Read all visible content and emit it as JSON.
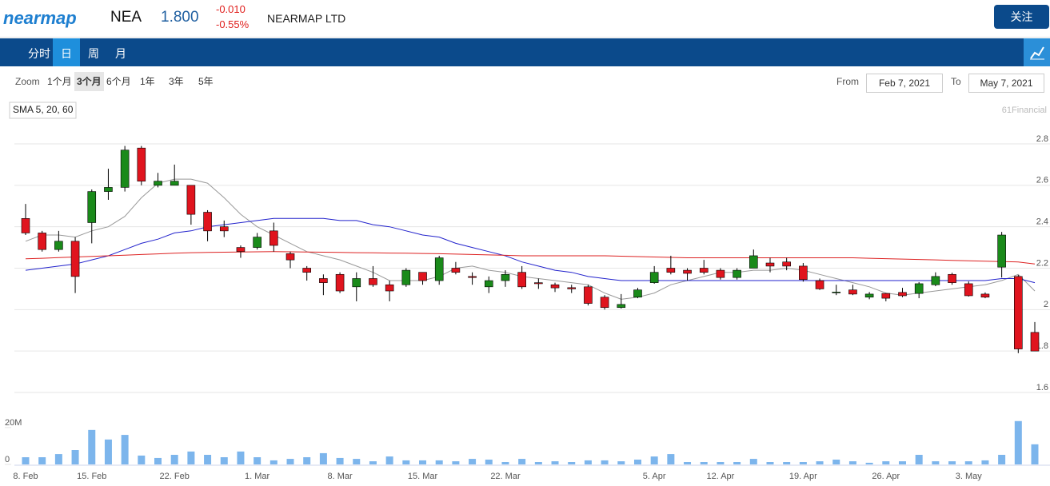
{
  "header": {
    "logo": "nearmap",
    "symbol": "NEA",
    "price": "1.800",
    "change": "-0.010",
    "change_pct": "-0.55%",
    "company": "NEARMAP LTD",
    "follow": "关注"
  },
  "nav": {
    "tabs": [
      "分时",
      "日",
      "周",
      "月"
    ],
    "active": 1
  },
  "toolbar": {
    "zoom_label": "Zoom",
    "zoom": [
      "1个月",
      "3个月",
      "6个月",
      "1年",
      "3年",
      "5年"
    ],
    "zoom_active": 1,
    "from_label": "From",
    "from": "Feb 7, 2021",
    "to_label": "To",
    "to": "May 7, 2021"
  },
  "chart_data": {
    "type": "candlestick",
    "indicator_label": "SMA 5, 20, 60",
    "credit": "61Financial",
    "categories": [
      "8. Feb",
      null,
      null,
      null,
      "15. Feb",
      null,
      null,
      null,
      null,
      "22. Feb",
      null,
      null,
      null,
      null,
      "1. Mar",
      null,
      null,
      null,
      null,
      "8. Mar",
      null,
      null,
      null,
      null,
      "15. Mar",
      null,
      null,
      null,
      null,
      "22. Mar",
      null,
      null,
      null,
      null,
      null,
      null,
      null,
      null,
      "5. Apr",
      null,
      null,
      null,
      "12. Apr",
      null,
      null,
      null,
      null,
      "19. Apr",
      null,
      null,
      null,
      null,
      "26. Apr",
      null,
      null,
      null,
      null,
      "3. May",
      null,
      null,
      null,
      null
    ],
    "open": [
      2.44,
      2.37,
      2.29,
      2.33,
      2.42,
      2.57,
      2.59,
      2.78,
      2.6,
      2.6,
      2.6,
      2.47,
      2.4,
      2.3,
      2.3,
      2.38,
      2.27,
      2.2,
      2.15,
      2.17,
      2.11,
      2.15,
      2.12,
      2.12,
      2.18,
      2.14,
      2.2,
      2.16,
      2.11,
      2.14,
      2.18,
      2.13,
      2.12,
      2.106,
      2.11,
      2.06,
      2.01,
      2.06,
      2.13,
      2.2,
      2.19,
      2.2,
      2.19,
      2.155,
      2.2,
      2.225,
      2.23,
      2.21,
      2.14,
      2.085,
      2.095,
      2.06,
      2.078,
      2.083,
      2.078,
      2.12,
      2.17,
      2.125,
      2.075,
      2.205,
      2.16,
      1.89
    ],
    "high": [
      2.51,
      2.38,
      2.38,
      2.35,
      2.58,
      2.68,
      2.79,
      2.79,
      2.66,
      2.7,
      2.6,
      2.48,
      2.43,
      2.31,
      2.37,
      2.42,
      2.28,
      2.21,
      2.17,
      2.18,
      2.18,
      2.21,
      2.14,
      2.2,
      2.18,
      2.26,
      2.23,
      2.18,
      2.16,
      2.19,
      2.21,
      2.15,
      2.13,
      2.12,
      2.12,
      2.07,
      2.075,
      2.105,
      2.21,
      2.26,
      2.2,
      2.24,
      2.2,
      2.2,
      2.29,
      2.25,
      2.25,
      2.225,
      2.15,
      2.12,
      2.12,
      2.085,
      2.08,
      2.105,
      2.133,
      2.18,
      2.178,
      2.136,
      2.083,
      2.375,
      2.167,
      1.94
    ],
    "low": [
      2.36,
      2.28,
      2.28,
      2.08,
      2.32,
      2.53,
      2.57,
      2.6,
      2.59,
      2.6,
      2.41,
      2.33,
      2.35,
      2.25,
      2.29,
      2.28,
      2.2,
      2.14,
      2.07,
      2.08,
      2.04,
      2.11,
      2.04,
      2.11,
      2.12,
      2.12,
      2.17,
      2.12,
      2.08,
      2.11,
      2.1,
      2.1,
      2.085,
      2.08,
      2.02,
      2.0,
      2.005,
      2.055,
      2.125,
      2.17,
      2.14,
      2.17,
      2.145,
      2.145,
      2.2,
      2.18,
      2.19,
      2.135,
      2.095,
      2.07,
      2.07,
      2.05,
      2.04,
      2.06,
      2.055,
      2.113,
      2.12,
      2.063,
      2.055,
      2.155,
      1.79,
      1.8
    ],
    "close": [
      2.37,
      2.29,
      2.33,
      2.16,
      2.57,
      2.59,
      2.77,
      2.62,
      2.62,
      2.62,
      2.46,
      2.38,
      2.38,
      2.28,
      2.35,
      2.31,
      2.24,
      2.18,
      2.13,
      2.09,
      2.15,
      2.12,
      2.09,
      2.19,
      2.14,
      2.25,
      2.18,
      2.155,
      2.14,
      2.17,
      2.11,
      2.125,
      2.105,
      2.1,
      2.03,
      2.01,
      2.025,
      2.095,
      2.18,
      2.18,
      2.175,
      2.18,
      2.155,
      2.19,
      2.26,
      2.21,
      2.21,
      2.145,
      2.1,
      2.085,
      2.075,
      2.075,
      2.055,
      2.067,
      2.125,
      2.16,
      2.13,
      2.067,
      2.06,
      2.36,
      1.81,
      1.8
    ],
    "volume": [
      3900000,
      3900000,
      5600000,
      7800000,
      18700000,
      13500000,
      16000000,
      4800000,
      3500000,
      5200000,
      7000000,
      5200000,
      3900000,
      7000000,
      3900000,
      2200000,
      3000000,
      3900000,
      6100000,
      3500000,
      3000000,
      1700000,
      4300000,
      2200000,
      2200000,
      2200000,
      1700000,
      3000000,
      2600000,
      1300000,
      3000000,
      1300000,
      1700000,
      1300000,
      2200000,
      2200000,
      1700000,
      2600000,
      4300000,
      5600000,
      1300000,
      1300000,
      1300000,
      1300000,
      3000000,
      1300000,
      1300000,
      1300000,
      1700000,
      2600000,
      1700000,
      900000,
      1700000,
      1700000,
      5200000,
      1700000,
      1700000,
      1700000,
      2200000,
      5200000,
      23500000,
      10900000
    ],
    "sma": [
      {
        "color": "#999999",
        "values": [
          2.33,
          2.36,
          2.36,
          2.35,
          2.38,
          2.4,
          2.45,
          2.54,
          2.61,
          2.63,
          2.63,
          2.61,
          2.54,
          2.46,
          2.4,
          2.36,
          2.32,
          2.28,
          2.26,
          2.24,
          2.21,
          2.18,
          2.14,
          2.14,
          2.14,
          2.16,
          2.2,
          2.21,
          2.19,
          2.18,
          2.16,
          2.15,
          2.14,
          2.13,
          2.12,
          2.08,
          2.05,
          2.06,
          2.08,
          2.12,
          2.14,
          2.16,
          2.18,
          2.18,
          2.19,
          2.19,
          2.2,
          2.19,
          2.17,
          2.15,
          2.13,
          2.11,
          2.08,
          2.07,
          2.08,
          2.09,
          2.1,
          2.11,
          2.12,
          2.14,
          2.17,
          2.09
        ]
      },
      {
        "color": "#2222cc",
        "values": [
          2.19,
          2.2,
          2.21,
          2.22,
          2.24,
          2.26,
          2.29,
          2.32,
          2.34,
          2.37,
          2.38,
          2.4,
          2.41,
          2.42,
          2.43,
          2.44,
          2.44,
          2.44,
          2.44,
          2.43,
          2.43,
          2.41,
          2.4,
          2.38,
          2.36,
          2.35,
          2.32,
          2.3,
          2.28,
          2.26,
          2.23,
          2.21,
          2.19,
          2.18,
          2.16,
          2.15,
          2.14,
          2.14,
          2.14,
          2.14,
          2.14,
          2.14,
          2.14,
          2.14,
          2.14,
          2.14,
          2.14,
          2.14,
          2.14,
          2.14,
          2.14,
          2.14,
          2.14,
          2.14,
          2.14,
          2.14,
          2.14,
          2.14,
          2.14,
          2.15,
          2.15,
          2.13
        ]
      },
      {
        "color": "#dd2222",
        "values": [
          2.245,
          2.248,
          2.251,
          2.254,
          2.257,
          2.26,
          2.263,
          2.266,
          2.269,
          2.272,
          2.275,
          2.276,
          2.277,
          2.278,
          2.279,
          2.28,
          2.279,
          2.278,
          2.277,
          2.276,
          2.275,
          2.274,
          2.273,
          2.272,
          2.271,
          2.27,
          2.268,
          2.266,
          2.264,
          2.262,
          2.26,
          2.26,
          2.26,
          2.26,
          2.26,
          2.26,
          2.258,
          2.256,
          2.254,
          2.252,
          2.25,
          2.25,
          2.25,
          2.25,
          2.25,
          2.25,
          2.25,
          2.25,
          2.25,
          2.25,
          2.25,
          2.248,
          2.246,
          2.244,
          2.242,
          2.24,
          2.238,
          2.236,
          2.234,
          2.232,
          2.23,
          2.22
        ]
      }
    ],
    "up_color": "#1a8a1a",
    "down_color": "#e0141e",
    "volume_color": "#7cb5ec",
    "ylim": [
      1.6,
      2.8
    ],
    "yticks": [
      2.8,
      2.6,
      2.4,
      2.2,
      2,
      1.8,
      1.6
    ],
    "vlim": [
      0,
      39000000
    ],
    "vticks": [
      {
        "value": 20000000,
        "label": "20M"
      },
      0
    ],
    "grid": true
  }
}
